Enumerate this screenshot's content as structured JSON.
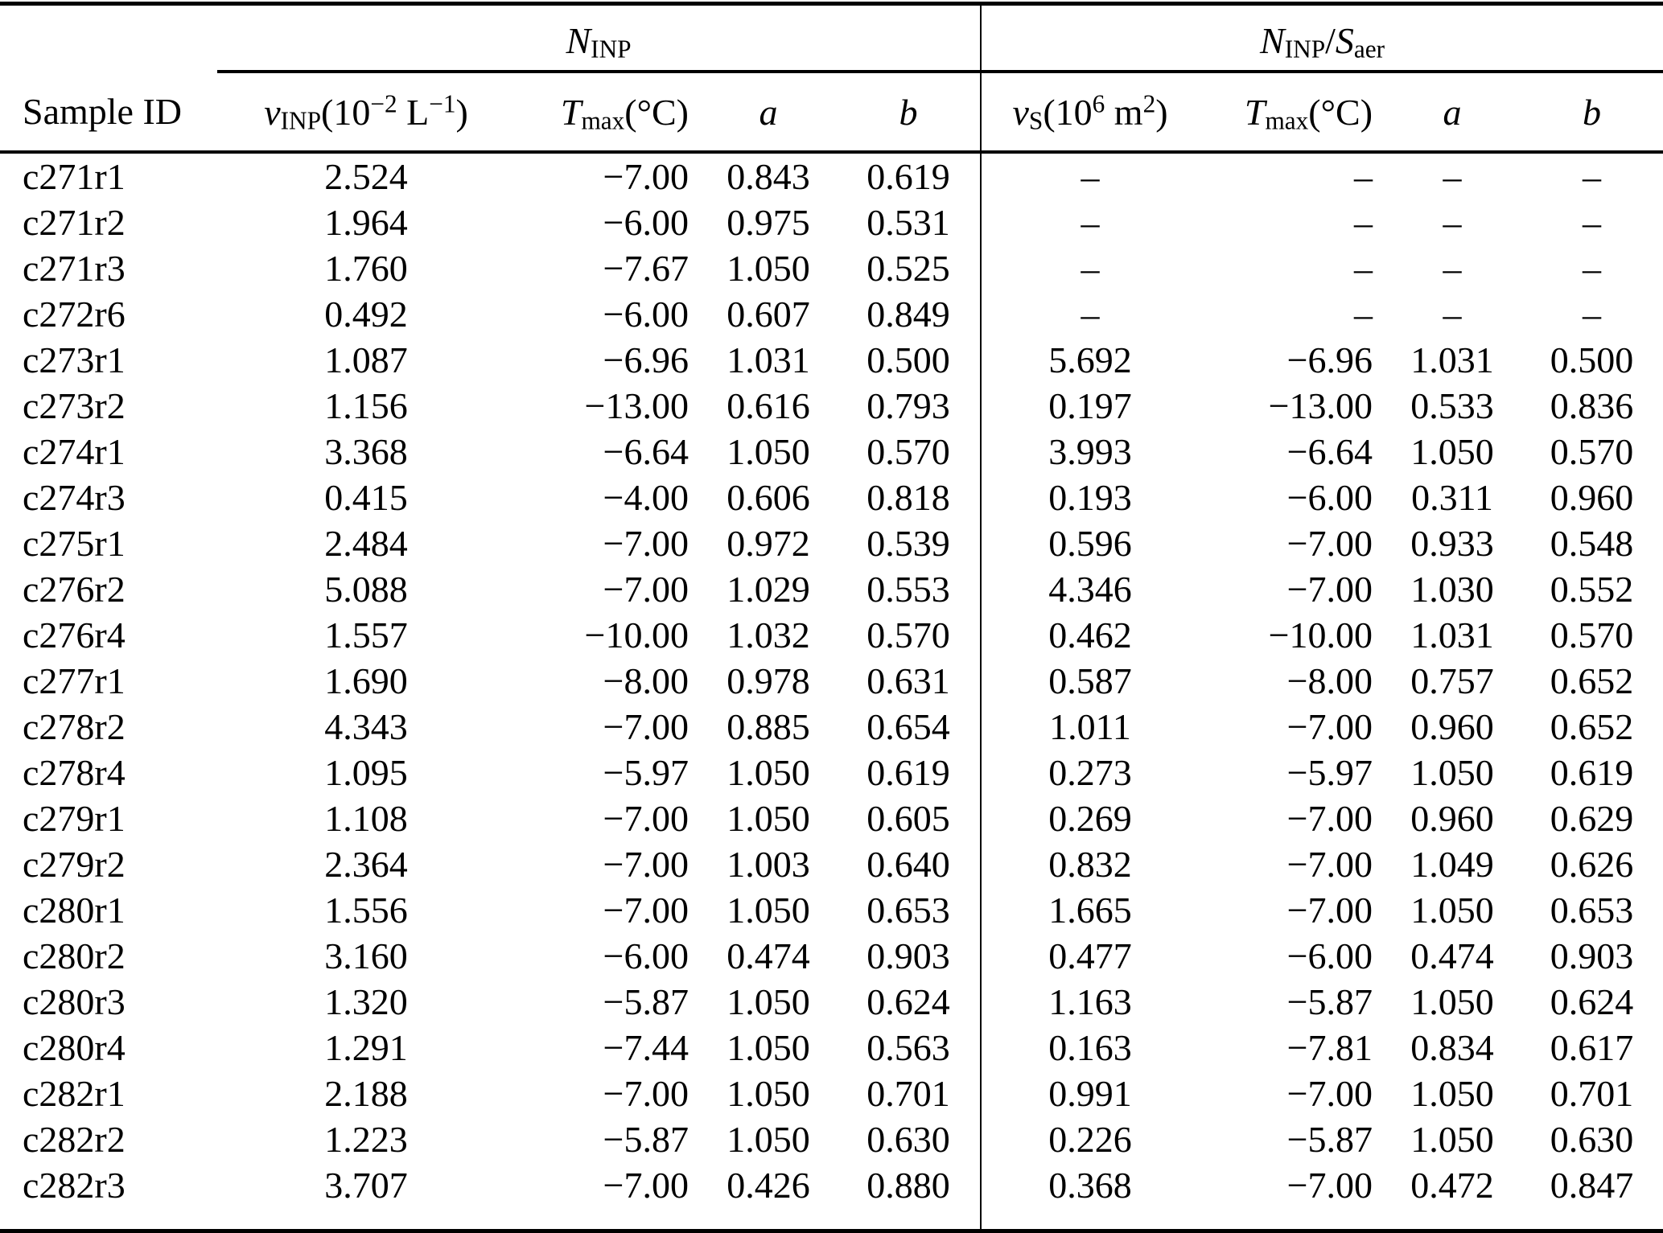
{
  "table": {
    "group_headers": [
      {
        "name": "N_INP",
        "rich": [
          {
            "s": "i",
            "v": "N"
          },
          {
            "s": "sub",
            "v": "INP"
          }
        ]
      },
      {
        "name": "N_INP/S_aer",
        "rich": [
          {
            "s": "i",
            "v": "N"
          },
          {
            "s": "sub",
            "v": "INP"
          },
          {
            "s": "",
            "v": "/"
          },
          {
            "s": "i",
            "v": "S"
          },
          {
            "s": "sub",
            "v": "aer"
          }
        ]
      }
    ],
    "col_headers": [
      {
        "name": "sample-id",
        "rich": [
          {
            "s": "",
            "v": "Sample ID"
          }
        ]
      },
      {
        "name": "nu-inp",
        "rich": [
          {
            "s": "i",
            "v": "ν"
          },
          {
            "s": "sub",
            "v": "INP"
          },
          {
            "s": "",
            "v": "(10"
          },
          {
            "s": "sup",
            "v": "−2"
          },
          {
            "s": "",
            "v": " L"
          },
          {
            "s": "sup",
            "v": "−1"
          },
          {
            "s": "",
            "v": ")"
          }
        ]
      },
      {
        "name": "t-max-inp",
        "rich": [
          {
            "s": "i",
            "v": "T"
          },
          {
            "s": "sub",
            "v": "max"
          },
          {
            "s": "",
            "v": "(°C)"
          }
        ]
      },
      {
        "name": "a-inp",
        "rich": [
          {
            "s": "i",
            "v": "a"
          }
        ]
      },
      {
        "name": "b-inp",
        "rich": [
          {
            "s": "i",
            "v": "b"
          }
        ]
      },
      {
        "name": "nu-s",
        "rich": [
          {
            "s": "i",
            "v": "ν"
          },
          {
            "s": "sub",
            "v": "S"
          },
          {
            "s": "",
            "v": "(10"
          },
          {
            "s": "sup",
            "v": "6"
          },
          {
            "s": "",
            "v": " m"
          },
          {
            "s": "sup",
            "v": "2"
          },
          {
            "s": "",
            "v": ")"
          }
        ]
      },
      {
        "name": "t-max-saer",
        "rich": [
          {
            "s": "i",
            "v": "T"
          },
          {
            "s": "sub",
            "v": "max"
          },
          {
            "s": "",
            "v": "(°C)"
          }
        ]
      },
      {
        "name": "a-saer",
        "rich": [
          {
            "s": "i",
            "v": "a"
          }
        ]
      },
      {
        "name": "b-saer",
        "rich": [
          {
            "s": "i",
            "v": "b"
          }
        ]
      }
    ],
    "rows": [
      [
        "c271r1",
        "2.524",
        "−7.00",
        "0.843",
        "0.619",
        "–",
        "–",
        "–",
        "–"
      ],
      [
        "c271r2",
        "1.964",
        "−6.00",
        "0.975",
        "0.531",
        "–",
        "–",
        "–",
        "–"
      ],
      [
        "c271r3",
        "1.760",
        "−7.67",
        "1.050",
        "0.525",
        "–",
        "–",
        "–",
        "–"
      ],
      [
        "c272r6",
        "0.492",
        "−6.00",
        "0.607",
        "0.849",
        "–",
        "–",
        "–",
        "–"
      ],
      [
        "c273r1",
        "1.087",
        "−6.96",
        "1.031",
        "0.500",
        "5.692",
        "−6.96",
        "1.031",
        "0.500"
      ],
      [
        "c273r2",
        "1.156",
        "−13.00",
        "0.616",
        "0.793",
        "0.197",
        "−13.00",
        "0.533",
        "0.836"
      ],
      [
        "c274r1",
        "3.368",
        "−6.64",
        "1.050",
        "0.570",
        "3.993",
        "−6.64",
        "1.050",
        "0.570"
      ],
      [
        "c274r3",
        "0.415",
        "−4.00",
        "0.606",
        "0.818",
        "0.193",
        "−6.00",
        "0.311",
        "0.960"
      ],
      [
        "c275r1",
        "2.484",
        "−7.00",
        "0.972",
        "0.539",
        "0.596",
        "−7.00",
        "0.933",
        "0.548"
      ],
      [
        "c276r2",
        "5.088",
        "−7.00",
        "1.029",
        "0.553",
        "4.346",
        "−7.00",
        "1.030",
        "0.552"
      ],
      [
        "c276r4",
        "1.557",
        "−10.00",
        "1.032",
        "0.570",
        "0.462",
        "−10.00",
        "1.031",
        "0.570"
      ],
      [
        "c277r1",
        "1.690",
        "−8.00",
        "0.978",
        "0.631",
        "0.587",
        "−8.00",
        "0.757",
        "0.652"
      ],
      [
        "c278r2",
        "4.343",
        "−7.00",
        "0.885",
        "0.654",
        "1.011",
        "−7.00",
        "0.960",
        "0.652"
      ],
      [
        "c278r4",
        "1.095",
        "−5.97",
        "1.050",
        "0.619",
        "0.273",
        "−5.97",
        "1.050",
        "0.619"
      ],
      [
        "c279r1",
        "1.108",
        "−7.00",
        "1.050",
        "0.605",
        "0.269",
        "−7.00",
        "0.960",
        "0.629"
      ],
      [
        "c279r2",
        "2.364",
        "−7.00",
        "1.003",
        "0.640",
        "0.832",
        "−7.00",
        "1.049",
        "0.626"
      ],
      [
        "c280r1",
        "1.556",
        "−7.00",
        "1.050",
        "0.653",
        "1.665",
        "−7.00",
        "1.050",
        "0.653"
      ],
      [
        "c280r2",
        "3.160",
        "−6.00",
        "0.474",
        "0.903",
        "0.477",
        "−6.00",
        "0.474",
        "0.903"
      ],
      [
        "c280r3",
        "1.320",
        "−5.87",
        "1.050",
        "0.624",
        "1.163",
        "−5.87",
        "1.050",
        "0.624"
      ],
      [
        "c280r4",
        "1.291",
        "−7.44",
        "1.050",
        "0.563",
        "0.163",
        "−7.81",
        "0.834",
        "0.617"
      ],
      [
        "c282r1",
        "2.188",
        "−7.00",
        "1.050",
        "0.701",
        "0.991",
        "−7.00",
        "1.050",
        "0.701"
      ],
      [
        "c282r2",
        "1.223",
        "−5.87",
        "1.050",
        "0.630",
        "0.226",
        "−5.87",
        "1.050",
        "0.630"
      ],
      [
        "c282r3",
        "3.707",
        "−7.00",
        "0.426",
        "0.880",
        "0.368",
        "−7.00",
        "0.472",
        "0.847"
      ]
    ]
  }
}
